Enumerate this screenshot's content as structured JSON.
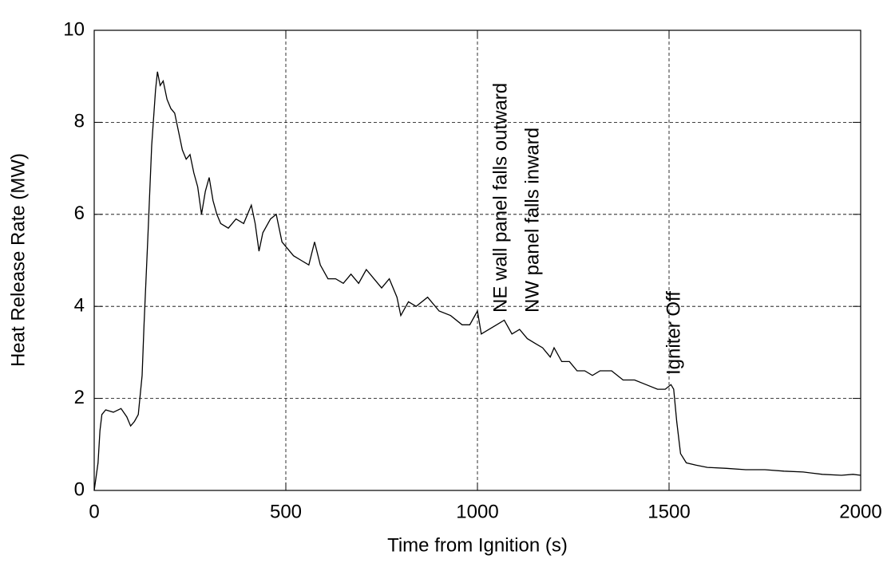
{
  "chart_data": {
    "type": "line",
    "xlabel": "Time from Ignition (s)",
    "ylabel": "Heat Release Rate (MW)",
    "annotations": [
      "NE wall panel falls outward",
      "NW panel falls inward",
      "Igniter Off"
    ],
    "xlim": [
      0,
      2000
    ],
    "xticks": [
      0,
      500,
      1000,
      1500,
      2000
    ],
    "ylim": [
      0,
      10
    ],
    "yticks": [
      0,
      2,
      4,
      6,
      8,
      10
    ],
    "grid": true,
    "series": [
      {
        "color": "#000000",
        "x": [
          0,
          10,
          15,
          20,
          30,
          50,
          70,
          85,
          95,
          105,
          115,
          125,
          130,
          140,
          150,
          160,
          165,
          172,
          180,
          190,
          200,
          210,
          220,
          230,
          240,
          250,
          260,
          270,
          280,
          290,
          300,
          310,
          320,
          330,
          350,
          370,
          390,
          410,
          420,
          430,
          440,
          460,
          475,
          490,
          500,
          520,
          540,
          560,
          575,
          590,
          610,
          630,
          650,
          670,
          690,
          710,
          730,
          750,
          770,
          790,
          800,
          820,
          840,
          870,
          900,
          930,
          960,
          980,
          1000,
          1010,
          1030,
          1050,
          1070,
          1090,
          1110,
          1130,
          1150,
          1170,
          1190,
          1200,
          1220,
          1240,
          1260,
          1280,
          1300,
          1320,
          1350,
          1380,
          1410,
          1440,
          1470,
          1490,
          1505,
          1512,
          1520,
          1530,
          1545,
          1570,
          1600,
          1650,
          1700,
          1750,
          1800,
          1850,
          1900,
          1950,
          1980,
          2000
        ],
        "values": [
          0,
          0.6,
          1.3,
          1.65,
          1.75,
          1.7,
          1.78,
          1.6,
          1.4,
          1.5,
          1.65,
          2.5,
          3.6,
          5.5,
          7.5,
          8.7,
          9.1,
          8.8,
          8.9,
          8.5,
          8.3,
          8.2,
          7.8,
          7.4,
          7.2,
          7.3,
          6.9,
          6.6,
          6.0,
          6.5,
          6.8,
          6.3,
          6.0,
          5.8,
          5.7,
          5.9,
          5.8,
          6.2,
          5.8,
          5.2,
          5.6,
          5.9,
          6.0,
          5.4,
          5.3,
          5.1,
          5.0,
          4.9,
          5.4,
          4.9,
          4.6,
          4.6,
          4.5,
          4.7,
          4.5,
          4.8,
          4.6,
          4.4,
          4.6,
          4.2,
          3.8,
          4.1,
          4.0,
          4.2,
          3.9,
          3.8,
          3.6,
          3.6,
          3.9,
          3.4,
          3.5,
          3.6,
          3.7,
          3.4,
          3.5,
          3.3,
          3.2,
          3.1,
          2.9,
          3.1,
          2.8,
          2.8,
          2.6,
          2.6,
          2.5,
          2.6,
          2.6,
          2.4,
          2.4,
          2.3,
          2.2,
          2.2,
          2.3,
          2.2,
          1.5,
          0.8,
          0.6,
          0.55,
          0.5,
          0.48,
          0.45,
          0.45,
          0.42,
          0.4,
          0.35,
          0.33,
          0.35,
          0.33
        ]
      }
    ]
  }
}
